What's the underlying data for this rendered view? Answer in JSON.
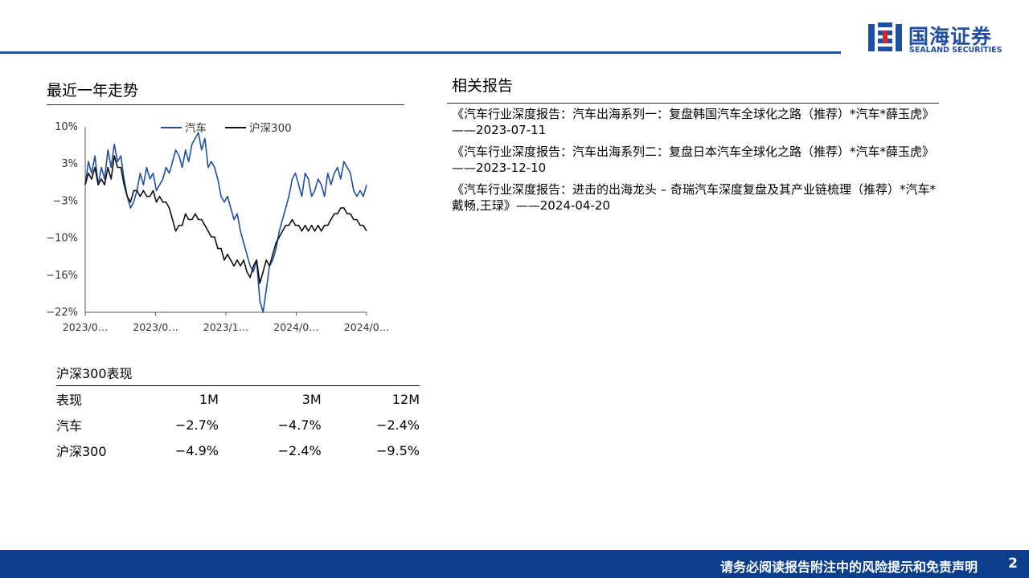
{
  "header": {
    "logo_cn": "国海证券",
    "logo_en": "SEALAND SECURITIES",
    "brand_color": "#1f4fa3"
  },
  "trend_section": {
    "title": "最近一年走势"
  },
  "chart_data": {
    "type": "line",
    "ylim": [
      -22,
      10
    ],
    "y_ticks": [
      "10%",
      "3%",
      "−3%",
      "−10%",
      "−16%",
      "−22%"
    ],
    "x_ticks": [
      "2023/0…",
      "2023/0…",
      "2023/1…",
      "2024/0…",
      "2024/0…"
    ],
    "legend_position": "top",
    "grid": false,
    "series": [
      {
        "name": "汽车",
        "color": "#1f4fa3",
        "values": [
          0,
          4,
          2,
          5,
          0,
          3,
          1,
          6,
          3,
          7,
          4,
          5,
          1,
          -2,
          -4,
          -3,
          -1,
          2,
          0,
          3,
          1,
          2,
          -1,
          0,
          1,
          3,
          2,
          4,
          6,
          5,
          3,
          6,
          4,
          7,
          8,
          9,
          6,
          8,
          3,
          4,
          3,
          1,
          -2,
          -3,
          -2,
          -4,
          -6,
          -5,
          -8,
          -10,
          -12,
          -14,
          -15,
          -13,
          -20,
          -22,
          -18,
          -14,
          -13,
          -11,
          -8,
          -6,
          -4,
          -2,
          1,
          2,
          0,
          -2,
          2,
          1,
          -2,
          -1,
          1,
          0,
          -2,
          2,
          0,
          2,
          3,
          1,
          4,
          3,
          2,
          -1,
          -2,
          -1,
          -2,
          0
        ]
      },
      {
        "name": "沪深300",
        "color": "#111111",
        "values": [
          0,
          2,
          1,
          3,
          0,
          1,
          0,
          3,
          1,
          5,
          3,
          3,
          0,
          -2,
          -3,
          -1,
          -1,
          -2,
          -1,
          -2,
          -2,
          -1,
          -3,
          -2,
          -3,
          -3,
          -4,
          -6,
          -8,
          -7,
          -7,
          -5,
          -6,
          -6,
          -5,
          -6,
          -6,
          -7,
          -8,
          -9,
          -9,
          -11,
          -11,
          -13,
          -12,
          -13,
          -14,
          -13,
          -14,
          -13,
          -15,
          -16,
          -14,
          -13,
          -17,
          -15,
          -13,
          -14,
          -12,
          -10,
          -9,
          -8,
          -7,
          -7,
          -6,
          -7,
          -7,
          -8,
          -7,
          -8,
          -7,
          -8,
          -7,
          -8,
          -7,
          -7,
          -6,
          -5,
          -5,
          -4,
          -4,
          -5,
          -5,
          -6,
          -6,
          -7,
          -7,
          -8
        ]
      }
    ]
  },
  "performance": {
    "title": "沪深300表现",
    "headers": [
      "表现",
      "1M",
      "3M",
      "12M"
    ],
    "rows": [
      [
        "汽车",
        "−2.7%",
        "−4.7%",
        "−2.4%"
      ],
      [
        "沪深300",
        "−4.9%",
        "−2.4%",
        "−9.5%"
      ]
    ]
  },
  "related_reports": {
    "title": "相关报告",
    "items": [
      "《汽车行业深度报告：汽车出海系列一：复盘韩国汽车全球化之路（推荐）*汽车*薛玉虎》——2023-07-11",
      "《汽车行业深度报告：汽车出海系列二：复盘日本汽车全球化之路（推荐）*汽车*薛玉虎》——2023-12-10",
      "《汽车行业深度报告：进击的出海龙头 – 奇瑞汽车深度复盘及其产业链梳理（推荐）*汽车*戴畅,王琭》——2024-04-20"
    ]
  },
  "footer": {
    "disclaimer": "请务必阅读报告附注中的风险提示和免责声明",
    "page_number": "2",
    "color": "#0b3f8c"
  }
}
